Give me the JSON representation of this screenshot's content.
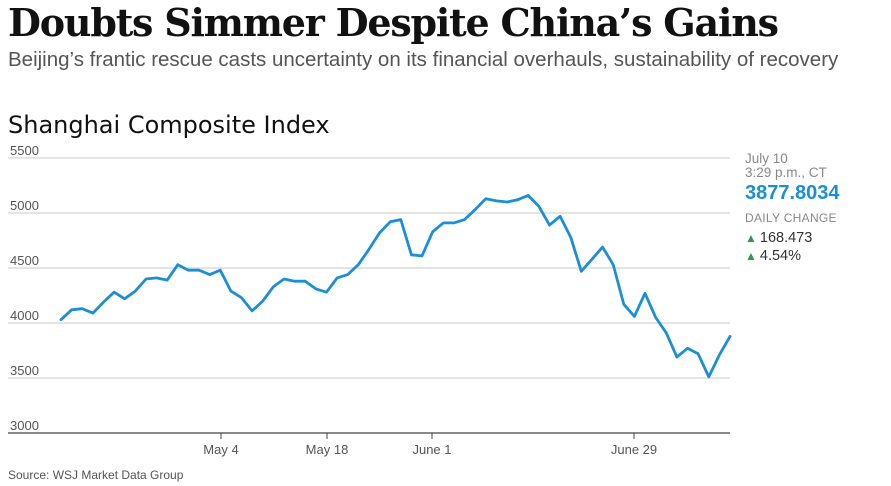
{
  "header": {
    "headline": "Doubts Simmer Despite China’s Gains",
    "subhead": "Beijing’s frantic rescue casts uncertainty on its financial overhauls, sustainability of recovery"
  },
  "panel": {
    "date": "July 10",
    "time": "3:29 p.m., CT",
    "value": "3877.8034",
    "label": "DAILY CHANGE",
    "change_points": "168.473",
    "change_percent": "4.54%",
    "direction_icon": "up-triangle-icon"
  },
  "source": "Source: WSJ Market Data Group",
  "colors": {
    "line": "#1b8fd6",
    "value_text": "#1b8fd6",
    "up": "#2a9d4a",
    "grid": "#c8c8c8",
    "axis": "#444444"
  },
  "chart_data": {
    "type": "line",
    "title": "Shanghai Composite Index",
    "xlabel": "",
    "ylabel": "",
    "ylim": [
      3000,
      5500
    ],
    "yticks": [
      3000,
      3500,
      4000,
      4500,
      5000,
      5500
    ],
    "xtick_labels": [
      "May 4",
      "May 18",
      "June 1",
      "June 29"
    ],
    "grid": true,
    "series": [
      {
        "values": [
          4030,
          4120,
          4130,
          4090,
          4190,
          4280,
          4220,
          4290,
          4400,
          4410,
          4390,
          4530,
          4480,
          4480,
          4440,
          4480,
          4290,
          4230,
          4110,
          4200,
          4330,
          4400,
          4380,
          4380,
          4310,
          4280,
          4410,
          4440,
          4530,
          4670,
          4820,
          4920,
          4940,
          4620,
          4610,
          4830,
          4910,
          4910,
          4940,
          5030,
          5130,
          5110,
          5100,
          5120,
          5160,
          5060,
          4890,
          4970,
          4780,
          4470,
          4580,
          4690,
          4530,
          4170,
          4060,
          4270,
          4050,
          3910,
          3690,
          3770,
          3720,
          3510,
          3710,
          3878
        ]
      }
    ]
  }
}
